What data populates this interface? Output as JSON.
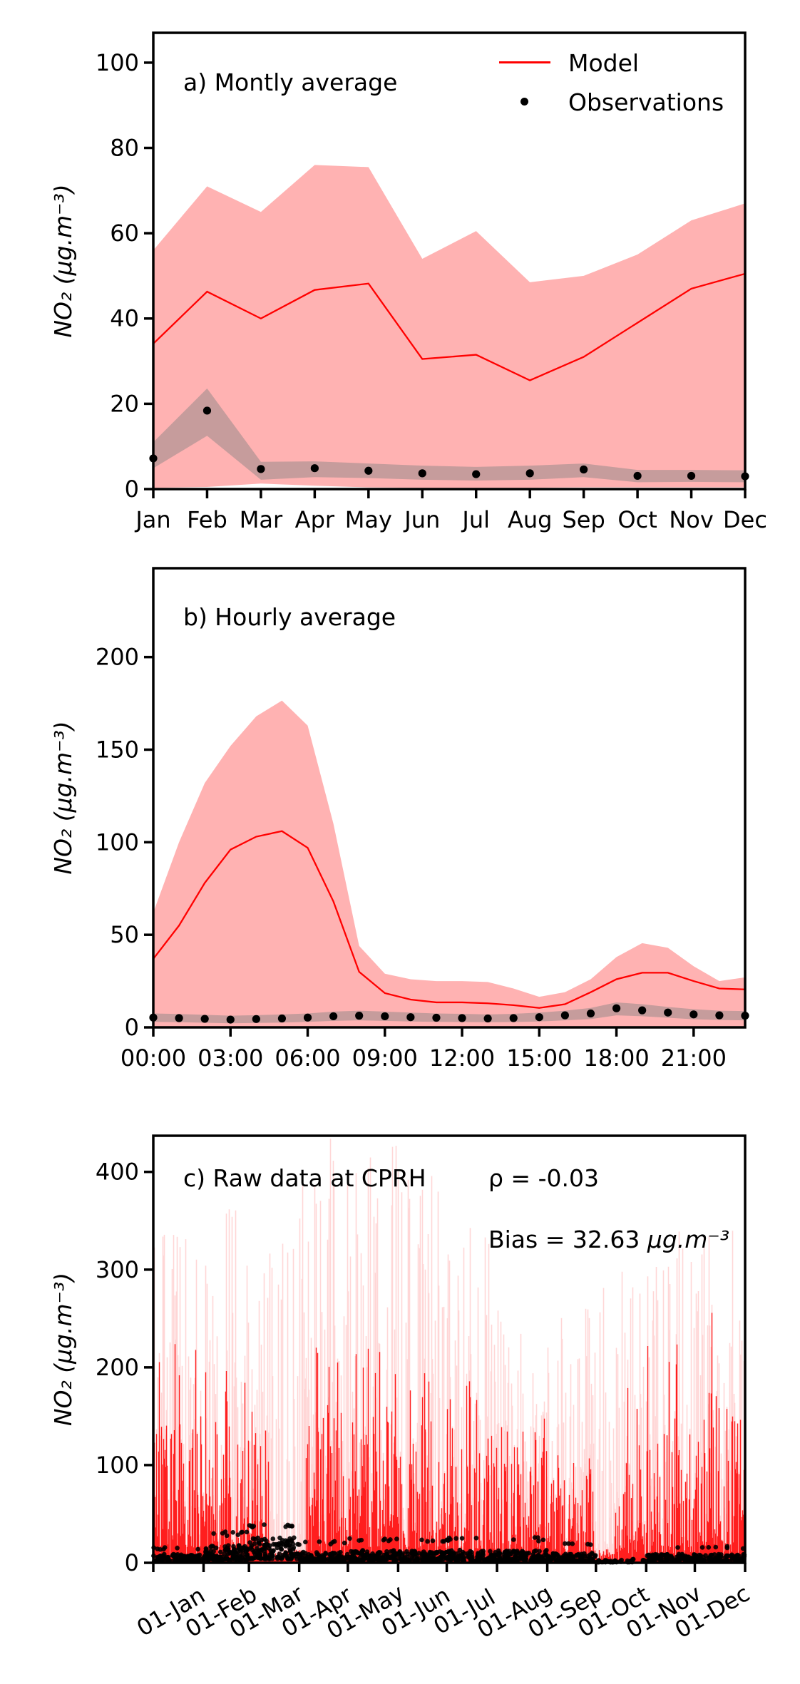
{
  "figure": {
    "ylabel": "NO₂ (µg.m⁻³)",
    "legend": {
      "model": "Model",
      "observations": "Observations"
    },
    "colors": {
      "model_line": "#ff0000",
      "model_band": "rgba(255,0,0,0.30)",
      "obs_band": "rgba(128,128,128,0.45)",
      "obs_marker": "#000000",
      "raw_pale": "rgba(255,0,0,0.16)",
      "raw_red": "rgba(255,10,10,0.90)",
      "axis": "#000000"
    }
  },
  "chart_data": [
    {
      "id": "a",
      "type": "line",
      "title": "a) Montly average",
      "xlabel": "",
      "ylabel": "NO₂ (µg.m⁻³)",
      "x_tick_labels": [
        "Jan",
        "Feb",
        "Mar",
        "Apr",
        "May",
        "Jun",
        "Jul",
        "Aug",
        "Sep",
        "Oct",
        "Nov",
        "Dec"
      ],
      "y_ticks": [
        0,
        20,
        40,
        60,
        80,
        100
      ],
      "ylim": [
        0,
        107
      ],
      "legend_position": "upper right",
      "series": [
        {
          "name": "Model",
          "values": [
            34.1,
            46.3,
            40.0,
            46.7,
            48.2,
            30.5,
            31.5,
            25.5,
            31.0,
            39.0,
            47.0,
            50.5
          ]
        },
        {
          "name": "Model spread upper",
          "values": [
            56,
            71,
            65,
            76,
            75.5,
            54,
            60.5,
            48.5,
            50,
            55,
            63,
            67
          ]
        },
        {
          "name": "Model spread lower",
          "values": [
            0.3,
            0.5,
            1.3,
            0.8,
            0.4,
            0.3,
            0.3,
            0.3,
            0.4,
            0.4,
            0.4,
            0.4
          ]
        },
        {
          "name": "Observations",
          "values": [
            7.2,
            18.4,
            4.7,
            4.9,
            4.3,
            3.7,
            3.5,
            3.7,
            4.6,
            3.1,
            3.1,
            3.0
          ]
        },
        {
          "name": "Observations spread upper",
          "values": [
            11.0,
            23.6,
            6.4,
            6.5,
            6.0,
            5.5,
            5.2,
            5.5,
            6.0,
            4.5,
            4.5,
            4.4
          ]
        },
        {
          "name": "Observations spread lower",
          "values": [
            4.9,
            12.5,
            2.2,
            2.8,
            2.6,
            2.2,
            2.0,
            2.2,
            2.8,
            1.6,
            1.7,
            1.6
          ]
        }
      ]
    },
    {
      "id": "b",
      "type": "line",
      "title": "b) Hourly average",
      "xlabel": "",
      "ylabel": "NO₂ (µg.m⁻³)",
      "x_hours": [
        0,
        1,
        2,
        3,
        4,
        5,
        6,
        7,
        8,
        9,
        10,
        11,
        12,
        13,
        14,
        15,
        16,
        17,
        18,
        19,
        20,
        21,
        22,
        23
      ],
      "x_tick_hours": [
        0,
        3,
        6,
        9,
        12,
        15,
        18,
        21
      ],
      "x_tick_labels": [
        "00:00",
        "03:00",
        "06:00",
        "09:00",
        "12:00",
        "15:00",
        "18:00",
        "21:00"
      ],
      "y_ticks": [
        0,
        50,
        100,
        150,
        200
      ],
      "ylim": [
        0,
        248
      ],
      "series": [
        {
          "name": "Model",
          "values": [
            37,
            55,
            78,
            96,
            103,
            106,
            97,
            68,
            30,
            18.5,
            15,
            13.5,
            13.5,
            13,
            12,
            10.5,
            12.5,
            19,
            26,
            29.5,
            29.5,
            25,
            21,
            20.5
          ]
        },
        {
          "name": "Model spread upper",
          "values": [
            62,
            100,
            132,
            152,
            168,
            176.5,
            163,
            110,
            44,
            29,
            26,
            25,
            25,
            24.5,
            21,
            16.5,
            19,
            26,
            38,
            45.5,
            43,
            33,
            25,
            27
          ]
        },
        {
          "name": "Model spread lower",
          "values": [
            0.5,
            0.5,
            0.5,
            0.5,
            0.5,
            0.5,
            0.5,
            0.5,
            0.5,
            0.5,
            0.5,
            0.5,
            0.5,
            0.5,
            0.5,
            0.5,
            0.5,
            0.5,
            0.5,
            0.5,
            0.5,
            0.5,
            0.5,
            0.5
          ]
        },
        {
          "name": "Observations",
          "values": [
            5.3,
            5.0,
            4.6,
            4.2,
            4.5,
            4.8,
            5.3,
            6.0,
            6.3,
            6.0,
            5.5,
            5.2,
            5.0,
            4.8,
            5.0,
            5.5,
            6.5,
            7.5,
            10.3,
            9.2,
            8.0,
            7.0,
            6.5,
            6.3
          ]
        },
        {
          "name": "Observations spread upper",
          "values": [
            7.5,
            7.2,
            6.8,
            6.3,
            6.6,
            7.0,
            7.5,
            8.5,
            9.0,
            8.5,
            8.0,
            7.5,
            7.3,
            7.0,
            7.3,
            8.0,
            9.0,
            10.5,
            13.5,
            12.5,
            11.0,
            9.8,
            9.0,
            8.8
          ]
        },
        {
          "name": "Observations spread lower",
          "values": [
            3.0,
            2.8,
            2.5,
            2.2,
            2.4,
            2.6,
            3.0,
            3.5,
            3.8,
            3.5,
            3.2,
            3.0,
            2.9,
            2.8,
            2.9,
            3.2,
            3.8,
            4.5,
            6.5,
            6.0,
            5.2,
            4.4,
            4.0,
            3.8
          ]
        }
      ]
    },
    {
      "id": "c",
      "type": "raw hourly time series (dense spikes, values approximated by monthly envelopes)",
      "title": "c) Raw data at CPRH",
      "stats": {
        "rho": "ρ = -0.03",
        "bias_prefix": "Bias = 32.63 ",
        "bias_unit": "µg.m⁻³"
      },
      "x_tick_labels": [
        "01-Jan",
        "01-Feb",
        "01-Mar",
        "01-Apr",
        "01-May",
        "01-Jun",
        "01-Jul",
        "01-Aug",
        "01-Sep",
        "01-Oct",
        "01-Nov",
        "01-Dec"
      ],
      "x_tick_days": [
        0,
        31,
        59,
        90,
        120,
        151,
        181,
        212,
        243,
        273,
        304,
        334
      ],
      "y_ticks": [
        0,
        100,
        200,
        300,
        400
      ],
      "ylim": [
        0,
        437
      ],
      "raw_approximation": {
        "seed": 20,
        "days_per_month": [
          31,
          28,
          31,
          30,
          31,
          30,
          31,
          31,
          30,
          31,
          30,
          31
        ],
        "model_typical_max": [
          155,
          150,
          155,
          165,
          160,
          150,
          140,
          120,
          110,
          140,
          160,
          175
        ],
        "model_peak": [
          230,
          205,
          215,
          255,
          240,
          210,
          200,
          155,
          145,
          195,
          245,
          270
        ],
        "band_peak": [
          350,
          370,
          340,
          460,
          430,
          420,
          350,
          285,
          270,
          300,
          345,
          340
        ],
        "model_density": [
          0.93,
          0.9,
          0.78,
          0.88,
          0.92,
          0.92,
          0.9,
          0.88,
          0.85,
          0.78,
          0.9,
          0.9
        ],
        "sparse_gaps_days": [
          [
            72,
            94
          ],
          [
            272,
            284
          ]
        ],
        "obs_typical": [
          9,
          18,
          26,
          11,
          13,
          12,
          13,
          13,
          10,
          4,
          9,
          9
        ],
        "obs_peak": [
          16,
          32,
          42,
          22,
          26,
          24,
          26,
          26,
          20,
          9,
          16,
          17
        ],
        "obs_count": [
          120,
          140,
          150,
          120,
          130,
          120,
          130,
          130,
          120,
          40,
          110,
          120
        ]
      }
    }
  ]
}
